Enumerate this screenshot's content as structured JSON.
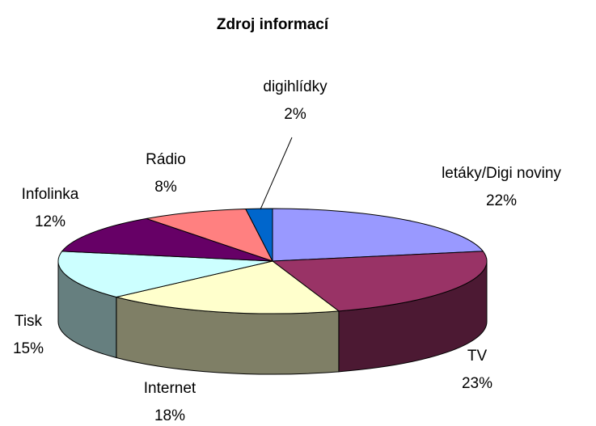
{
  "chart_data": {
    "type": "pie3d",
    "title": "Zdroj informací",
    "categories": [
      "letáky/Digi noviny",
      "TV",
      "Internet",
      "Tisk",
      "Infolinka",
      "Rádio",
      "digihlídky"
    ],
    "values": [
      22,
      23,
      18,
      15,
      12,
      8,
      2
    ],
    "value_labels": [
      "22%",
      "23%",
      "18%",
      "15%",
      "12%",
      "8%",
      "2%"
    ],
    "colors": [
      "#9999ff",
      "#993366",
      "#ffffcc",
      "#ccffff",
      "#660066",
      "#ff8080",
      "#0066cc"
    ]
  }
}
